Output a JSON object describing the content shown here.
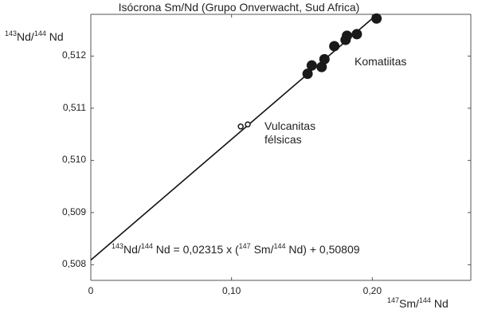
{
  "chart_data": {
    "type": "scatter",
    "title": "Isócrona Sm/Nd (Grupo Onverwacht, Sud Africa)",
    "ylabel": {
      "m1": "143",
      "e1": "Nd/",
      "m2": "144",
      "e2": " Nd"
    },
    "xlabel": {
      "m1": "147",
      "e1": "Sm/",
      "m2": "144",
      "e2": " Nd"
    },
    "xlim": [
      0,
      0.27
    ],
    "ylim": [
      0.5077,
      0.5128
    ],
    "x_ticks": [
      {
        "value": 0,
        "label": "0"
      },
      {
        "value": 0.1,
        "label": "0,10"
      },
      {
        "value": 0.2,
        "label": "0,20"
      }
    ],
    "y_ticks": [
      {
        "value": 0.508,
        "label": "0,508"
      },
      {
        "value": 0.509,
        "label": "0,509"
      },
      {
        "value": 0.51,
        "label": "0,510"
      },
      {
        "value": 0.511,
        "label": "0,511"
      },
      {
        "value": 0.512,
        "label": "0,512"
      }
    ],
    "regression": {
      "slope": 0.02315,
      "intercept": 0.50809
    },
    "equation": {
      "a": "143",
      "b": "Nd/",
      "c": "144",
      "d": " Nd = 0,02315 x (",
      "e": "147",
      "f": " Sm/",
      "g": "144",
      "h": "  Nd) + 0,50809"
    },
    "series": [
      {
        "name": "Komatiitas",
        "marker": "filled",
        "points": [
          {
            "x": 0.154,
            "y": 0.51166
          },
          {
            "x": 0.157,
            "y": 0.51182
          },
          {
            "x": 0.164,
            "y": 0.51179
          },
          {
            "x": 0.166,
            "y": 0.51194
          },
          {
            "x": 0.173,
            "y": 0.51219
          },
          {
            "x": 0.181,
            "y": 0.51231
          },
          {
            "x": 0.182,
            "y": 0.51239
          },
          {
            "x": 0.189,
            "y": 0.51242
          },
          {
            "x": 0.203,
            "y": 0.51272
          }
        ]
      },
      {
        "name": "Vulcanitas\nfélsicas",
        "marker": "open",
        "points": [
          {
            "x": 0.1065,
            "y": 0.51065
          },
          {
            "x": 0.1115,
            "y": 0.51069
          }
        ]
      }
    ],
    "colors": {
      "marker": "#1a1a1a",
      "line": "#111111",
      "axis": "#555555"
    }
  }
}
